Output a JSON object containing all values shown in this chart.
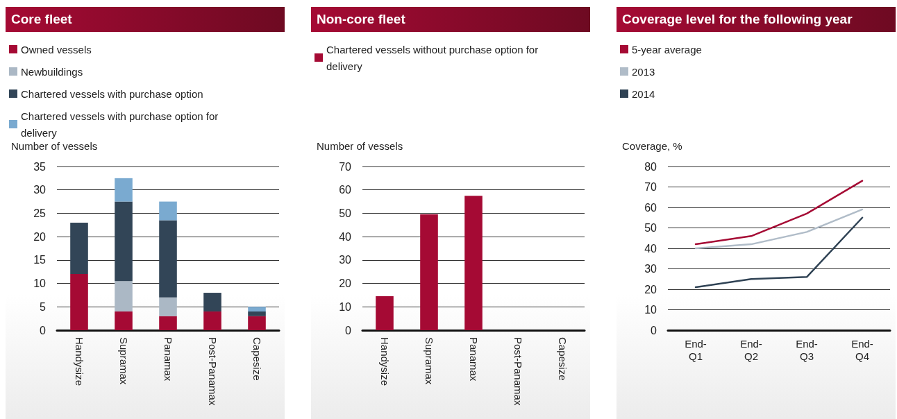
{
  "chart_data": [
    {
      "type": "bar",
      "title": "Core fleet",
      "ylabel": "Number of vessels",
      "categories": [
        "Handysize",
        "Supramax",
        "Panamax",
        "Post-Panamax",
        "Capesize"
      ],
      "stacked": true,
      "series": [
        {
          "name": "Owned vessels",
          "color": "#a50a34",
          "values": [
            12,
            4,
            3,
            4,
            3
          ]
        },
        {
          "name": "Newbuildings",
          "color": "#abb8c5",
          "values": [
            0,
            6.5,
            4,
            0,
            0
          ]
        },
        {
          "name": "Chartered vessels with purchase option",
          "color": "#324557",
          "values": [
            11,
            17,
            16.5,
            4,
            1
          ]
        },
        {
          "name": "Chartered vessels with purchase option for delivery",
          "color": "#7aaad0",
          "values": [
            0,
            5,
            4,
            0,
            1
          ]
        }
      ],
      "ylim": [
        0,
        35
      ],
      "yticks": [
        0,
        5,
        10,
        15,
        20,
        25,
        30,
        35
      ],
      "grid": "y",
      "legend": "top left"
    },
    {
      "type": "bar",
      "title": "Non-core fleet",
      "ylabel": "Number of vessels",
      "categories": [
        "Handysize",
        "Supramax",
        "Panamax",
        "Post-Panamax",
        "Capesize"
      ],
      "series": [
        {
          "name": "Chartered vessels without purchase option for delivery",
          "color": "#a50a34",
          "values": [
            14.5,
            49.5,
            57.5,
            0,
            0
          ]
        }
      ],
      "ylim": [
        0,
        70
      ],
      "yticks": [
        0,
        10,
        20,
        30,
        40,
        50,
        60,
        70
      ],
      "grid": "y",
      "legend": "top left"
    },
    {
      "type": "line",
      "title": "Coverage level for the following year",
      "ylabel": "Coverage, %",
      "categories": [
        "End-\nQ1",
        "End-\nQ2",
        "End-\nQ3",
        "End-\nQ4"
      ],
      "series": [
        {
          "name": "5-year average",
          "color": "#a50a34",
          "values": [
            42,
            46,
            57,
            73
          ]
        },
        {
          "name": "2013",
          "color": "#b0bcc8",
          "values": [
            40,
            42,
            48,
            59
          ]
        },
        {
          "name": "2014",
          "color": "#2f4254",
          "values": [
            21,
            25,
            26,
            55
          ]
        }
      ],
      "ylim": [
        0,
        80
      ],
      "yticks": [
        0,
        10,
        20,
        30,
        40,
        50,
        60,
        70,
        80
      ],
      "grid": "y",
      "legend": "top left",
      "marker": "none"
    }
  ]
}
